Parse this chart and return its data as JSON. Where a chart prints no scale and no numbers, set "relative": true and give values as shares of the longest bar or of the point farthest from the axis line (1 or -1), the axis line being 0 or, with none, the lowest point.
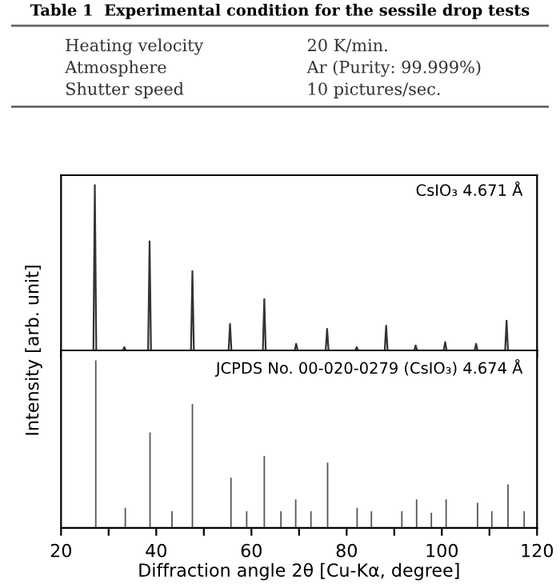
{
  "chart_data": [
    {
      "type": "other",
      "title": "Table 1  Experimental condition for the sessile drop tests",
      "annotations": [
        "Heating velocity",
        "20 K/min.",
        "Atmosphere",
        "Ar (Purity: 99.999%)",
        "Shutter speed",
        "10 pictures/sec."
      ]
    },
    {
      "type": "line",
      "relative": true,
      "ylabel": "Intensity [arb. unit]",
      "annotations": [
        "CsIO₃ 4.671 Å"
      ],
      "xlim": [
        20,
        120
      ],
      "xticks": [
        {
          "value": 20,
          "label": null
        },
        {
          "value": 40,
          "label": null
        },
        {
          "value": 60,
          "label": null
        },
        {
          "value": 80,
          "label": null
        },
        {
          "value": 100,
          "label": null
        },
        {
          "value": 120,
          "label": null
        }
      ],
      "tick_labels": false,
      "series": [
        {
          "color": "#333333",
          "x": [
            20,
            26.8,
            27.1,
            27.4,
            33.0,
            33.3,
            33.6,
            38.3,
            38.6,
            38.9,
            47.3,
            47.6,
            47.9,
            55.2,
            55.5,
            55.8,
            62.4,
            62.7,
            63.0,
            69.1,
            69.4,
            69.7,
            75.6,
            75.9,
            76.2,
            81.8,
            82.1,
            82.4,
            88.0,
            88.3,
            88.6,
            94.2,
            94.5,
            94.8,
            100.4,
            100.7,
            101.0,
            106.9,
            107.2,
            107.5,
            113.3,
            113.6,
            113.9,
            120
          ],
          "values": [
            0,
            0,
            1,
            0,
            0,
            0.02,
            0,
            0,
            0.66,
            0,
            0,
            0.48,
            0,
            0,
            0.16,
            0,
            0,
            0.31,
            0,
            0,
            0.04,
            0,
            0,
            0.13,
            0,
            0,
            0.02,
            0,
            0,
            0.15,
            0,
            0,
            0.03,
            0,
            0,
            0.05,
            0,
            0,
            0.04,
            0,
            0,
            0.18,
            0,
            0
          ]
        }
      ]
    },
    {
      "type": "bar",
      "relative": true,
      "xlabel": "Diffraction angle 2θ [Cu-Kα, degree]",
      "annotations": [
        "JCPDS No. 00-020-0279 (CsIO₃) 4.674 Å"
      ],
      "xlim": [
        20,
        120
      ],
      "xticks": [
        20,
        {
          "value": 30,
          "label": null
        },
        40,
        {
          "value": 50,
          "label": null
        },
        60,
        {
          "value": 70,
          "label": null
        },
        80,
        {
          "value": 90,
          "label": null
        },
        100,
        {
          "value": 110,
          "label": null
        },
        120
      ],
      "tick_labels": "x",
      "series": [
        {
          "color": "#555555",
          "x": [
            27.3,
            33.5,
            38.7,
            43.3,
            47.6,
            55.7,
            59.0,
            62.7,
            66.2,
            69.3,
            72.5,
            76.0,
            82.2,
            85.2,
            91.6,
            94.7,
            97.8,
            100.9,
            107.5,
            110.5,
            113.9,
            117.3
          ],
          "values": [
            1,
            0.12,
            0.57,
            0.1,
            0.74,
            0.3,
            0.1,
            0.43,
            0.1,
            0.17,
            0.1,
            0.39,
            0.12,
            0.1,
            0.1,
            0.17,
            0.09,
            0.17,
            0.15,
            0.1,
            0.26,
            0.1
          ]
        }
      ]
    }
  ]
}
